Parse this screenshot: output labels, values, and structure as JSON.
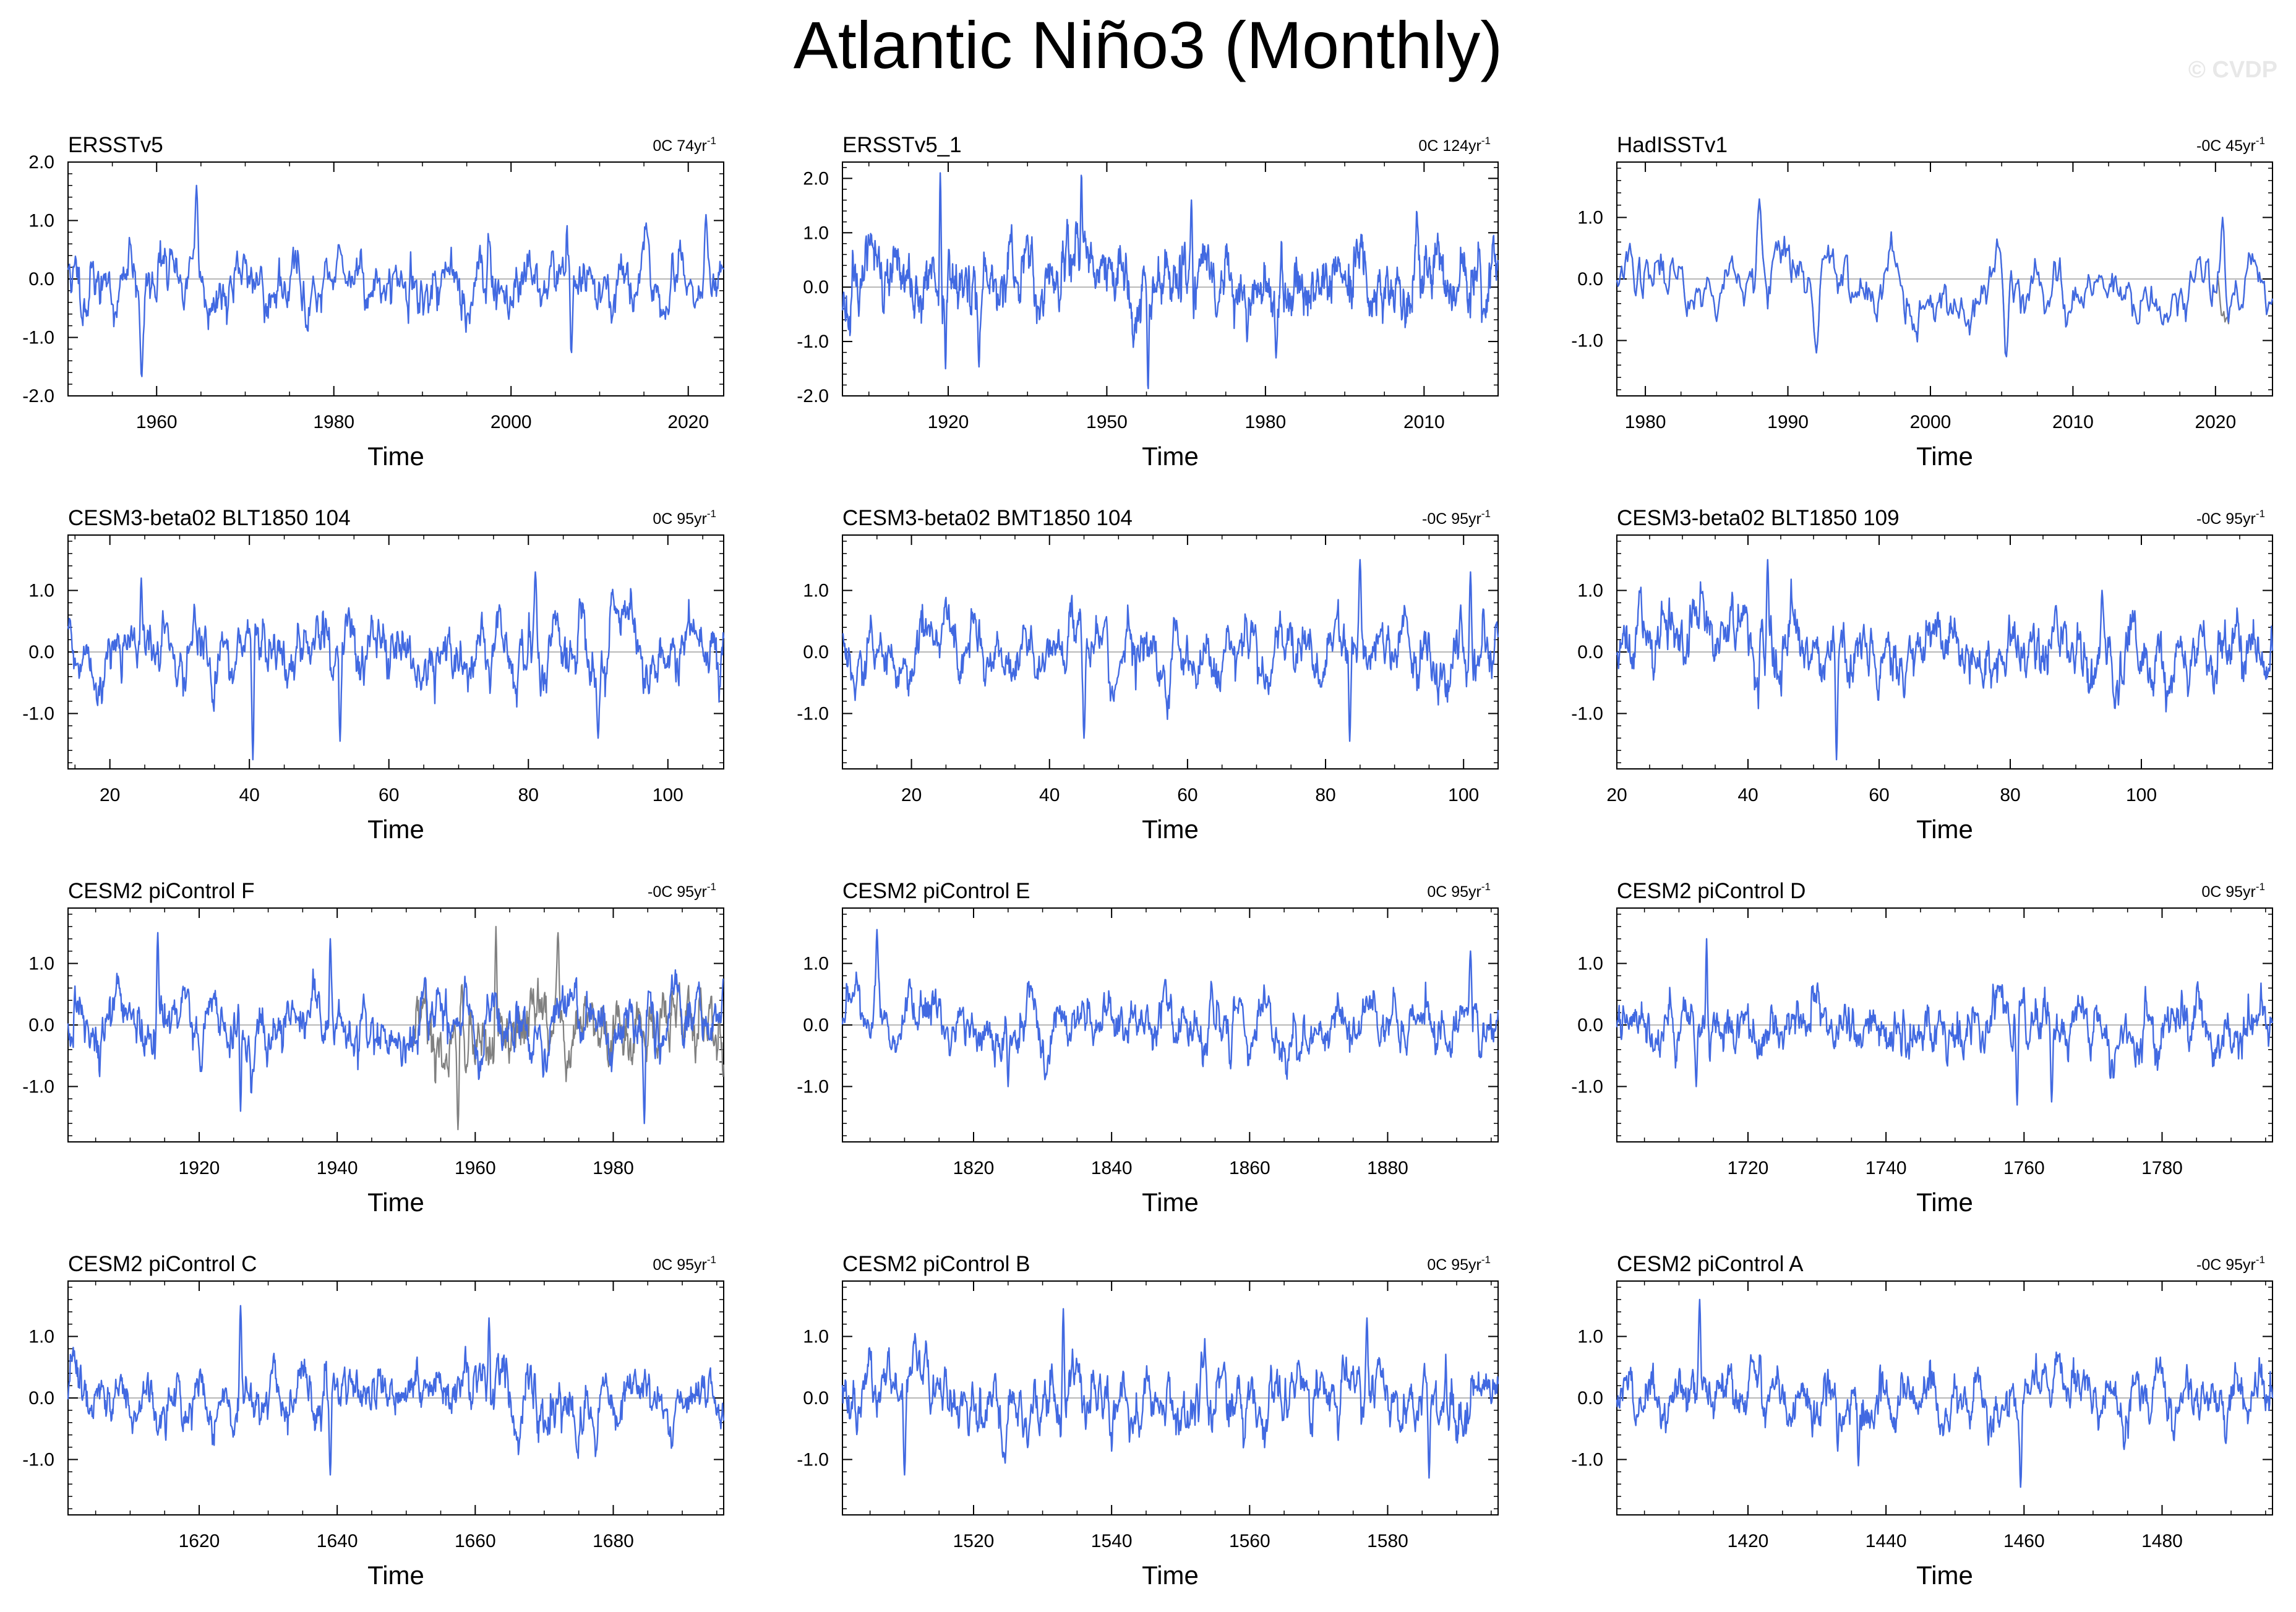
{
  "page": {
    "title": "Atlantic Niño3 (Monthly)",
    "watermark": "© CVDP"
  },
  "colors": {
    "primary_line": "#4169e1",
    "secondary_line": "#808080",
    "zero_line": "#a0a0a0",
    "frame": "#000000"
  },
  "chart_data": [
    {
      "type": "line",
      "panel": "ERSSTv5",
      "trend_text": "0C 74yr",
      "trend_unit_exp": "-1",
      "xlabel": "Time",
      "xlim": [
        1950,
        2024
      ],
      "ylim": [
        -2.0,
        2.0
      ],
      "xticks": [
        1960,
        1980,
        2000,
        2020
      ],
      "yticks": [
        2.0,
        1.0,
        0.0,
        -1.0,
        -2.0
      ],
      "ytick_labels": [
        "2.0",
        "1.0",
        "0.0",
        "-1.0",
        "-2.0"
      ],
      "series": [
        {
          "style": "primary",
          "seed": 11,
          "amp": 0.55,
          "peaks": [
            [
              1964.5,
              1.6
            ],
            [
              1958.3,
              -1.7
            ],
            [
              2006.8,
              -1.3
            ],
            [
              2022,
              1.1
            ]
          ]
        }
      ]
    },
    {
      "type": "line",
      "panel": "ERSSTv5_1",
      "trend_text": "0C 124yr",
      "trend_unit_exp": "-1",
      "xlabel": "Time",
      "xlim": [
        1900,
        2024
      ],
      "ylim": [
        -2.0,
        2.3
      ],
      "xticks": [
        1920,
        1950,
        1980,
        2010
      ],
      "yticks": [
        2.0,
        1.0,
        0.0,
        -1.0,
        -2.0
      ],
      "ytick_labels": [
        "2.0",
        "1.0",
        "0.0",
        "-1.0",
        "-2.0"
      ],
      "series": [
        {
          "style": "primary",
          "seed": 23,
          "amp": 0.6,
          "peaks": [
            [
              1918.5,
              2.1
            ],
            [
              1945.2,
              2.1
            ],
            [
              1919.5,
              -1.5
            ],
            [
              1957.8,
              -1.9
            ],
            [
              1966,
              1.6
            ],
            [
              1982,
              -1.3
            ]
          ]
        }
      ]
    },
    {
      "type": "line",
      "panel": "HadISSTv1",
      "trend_text": "-0C 45yr",
      "trend_unit_exp": "-1",
      "xlabel": "Time",
      "xlim": [
        1978,
        2024
      ],
      "ylim": [
        -1.9,
        1.9
      ],
      "xticks": [
        1980,
        1990,
        2000,
        2010,
        2020
      ],
      "yticks": [
        1.0,
        0.0,
        -1.0
      ],
      "ytick_labels": [
        "1.0",
        "0.0",
        "-1.0"
      ],
      "series": [
        {
          "style": "secondary",
          "seed": 37,
          "amp": 0.5,
          "peaks": [
            [
              1988,
              1.25
            ],
            [
              2005.3,
              -1.3
            ],
            [
              1992,
              -1.2
            ]
          ]
        },
        {
          "style": "primary",
          "seed": 37,
          "amp": 0.5,
          "peaks": [
            [
              1988,
              1.3
            ],
            [
              2005.3,
              -1.3
            ],
            [
              1992,
              -1.2
            ],
            [
              2020.5,
              1.0
            ]
          ]
        }
      ]
    },
    {
      "type": "line",
      "panel": "CESM3-beta02 BLT1850 104",
      "trend_text": "0C 95yr",
      "trend_unit_exp": "-1",
      "xlabel": "Time",
      "xlim": [
        14,
        108
      ],
      "ylim": [
        -1.9,
        1.9
      ],
      "xticks": [
        20,
        40,
        60,
        80,
        100
      ],
      "yticks": [
        1.0,
        0.0,
        -1.0
      ],
      "ytick_labels": [
        "1.0",
        "0.0",
        "-1.0"
      ],
      "series": [
        {
          "style": "primary",
          "seed": 41,
          "amp": 0.5,
          "peaks": [
            [
              40.5,
              -1.75
            ],
            [
              53,
              -1.45
            ],
            [
              24.5,
              1.2
            ],
            [
              81,
              1.3
            ],
            [
              90,
              -1.4
            ]
          ]
        }
      ]
    },
    {
      "type": "line",
      "panel": "CESM3-beta02 BMT1850 104",
      "trend_text": "-0C 95yr",
      "trend_unit_exp": "-1",
      "xlabel": "Time",
      "xlim": [
        10,
        105
      ],
      "ylim": [
        -1.9,
        1.9
      ],
      "xticks": [
        20,
        40,
        60,
        80,
        100
      ],
      "yticks": [
        1.0,
        0.0,
        -1.0
      ],
      "ytick_labels": [
        "1.0",
        "0.0",
        "-1.0"
      ],
      "series": [
        {
          "style": "primary",
          "seed": 53,
          "amp": 0.5,
          "peaks": [
            [
              85,
              1.5
            ],
            [
              45,
              -1.4
            ],
            [
              83.5,
              -1.45
            ],
            [
              101,
              1.3
            ]
          ]
        }
      ]
    },
    {
      "type": "line",
      "panel": "CESM3-beta02 BLT1850 109",
      "trend_text": "-0C 95yr",
      "trend_unit_exp": "-1",
      "xlabel": "Time",
      "xlim": [
        20,
        120
      ],
      "ylim": [
        -1.9,
        1.9
      ],
      "xticks": [
        20,
        40,
        60,
        80,
        100
      ],
      "yticks": [
        1.0,
        0.0,
        -1.0
      ],
      "ytick_labels": [
        "1.0",
        "0.0",
        "-1.0"
      ],
      "series": [
        {
          "style": "primary",
          "seed": 67,
          "amp": 0.5,
          "peaks": [
            [
              43,
              1.5
            ],
            [
              53.5,
              -1.75
            ],
            [
              94,
              1.0
            ]
          ]
        }
      ]
    },
    {
      "type": "line",
      "panel": "CESM2 piControl F",
      "trend_text": "-0C 95yr",
      "trend_unit_exp": "-1",
      "xlabel": "Time",
      "xlim": [
        1901,
        1996
      ],
      "ylim": [
        -1.9,
        1.9
      ],
      "xticks": [
        1920,
        1940,
        1960,
        1980
      ],
      "yticks": [
        1.0,
        0.0,
        -1.0
      ],
      "ytick_labels": [
        "1.0",
        "0.0",
        "-1.0"
      ],
      "series": [
        {
          "style": "secondary",
          "seed": 79,
          "amp": 0.65,
          "start": 1951,
          "peaks": [
            [
              1963,
              1.6
            ],
            [
              1957.5,
              -1.7
            ],
            [
              1972,
              1.5
            ]
          ]
        },
        {
          "style": "primary",
          "seed": 83,
          "amp": 0.5,
          "peaks": [
            [
              1939,
              1.4
            ],
            [
              1914,
              1.5
            ],
            [
              1926,
              -1.4
            ],
            [
              1984.5,
              -1.6
            ]
          ]
        }
      ]
    },
    {
      "type": "line",
      "panel": "CESM2 piControl E",
      "trend_text": "0C 95yr",
      "trend_unit_exp": "-1",
      "xlabel": "Time",
      "xlim": [
        1801,
        1896
      ],
      "ylim": [
        -1.9,
        1.9
      ],
      "xticks": [
        1820,
        1840,
        1860,
        1880
      ],
      "yticks": [
        1.0,
        0.0,
        -1.0
      ],
      "ytick_labels": [
        "1.0",
        "0.0",
        "-1.0"
      ],
      "series": [
        {
          "style": "primary",
          "seed": 97,
          "amp": 0.45,
          "peaks": [
            [
              1806,
              1.55
            ],
            [
              1892,
              1.2
            ],
            [
              1825,
              -1.0
            ]
          ]
        }
      ]
    },
    {
      "type": "line",
      "panel": "CESM2 piControl D",
      "trend_text": "0C 95yr",
      "trend_unit_exp": "-1",
      "xlabel": "Time",
      "xlim": [
        1701,
        1796
      ],
      "ylim": [
        -1.9,
        1.9
      ],
      "xticks": [
        1720,
        1740,
        1760,
        1780
      ],
      "yticks": [
        1.0,
        0.0,
        -1.0
      ],
      "ytick_labels": [
        "1.0",
        "0.0",
        "-1.0"
      ],
      "series": [
        {
          "style": "primary",
          "seed": 101,
          "amp": 0.45,
          "peaks": [
            [
              1714,
              1.4
            ],
            [
              1759,
              -1.3
            ],
            [
              1764,
              -1.25
            ],
            [
              1712.5,
              -1.0
            ]
          ]
        }
      ]
    },
    {
      "type": "line",
      "panel": "CESM2 piControl C",
      "trend_text": "0C 95yr",
      "trend_unit_exp": "-1",
      "xlabel": "Time",
      "xlim": [
        1601,
        1696
      ],
      "ylim": [
        -1.9,
        1.9
      ],
      "xticks": [
        1620,
        1640,
        1660,
        1680
      ],
      "yticks": [
        1.0,
        0.0,
        -1.0
      ],
      "ytick_labels": [
        "1.0",
        "0.0",
        "-1.0"
      ],
      "series": [
        {
          "style": "primary",
          "seed": 113,
          "amp": 0.45,
          "peaks": [
            [
              1626,
              1.5
            ],
            [
              1639,
              -1.25
            ],
            [
              1662,
              1.3
            ]
          ]
        }
      ]
    },
    {
      "type": "line",
      "panel": "CESM2 piControl B",
      "trend_text": "0C 95yr",
      "trend_unit_exp": "-1",
      "xlabel": "Time",
      "xlim": [
        1501,
        1596
      ],
      "ylim": [
        -1.9,
        1.9
      ],
      "xticks": [
        1520,
        1540,
        1560,
        1580
      ],
      "yticks": [
        1.0,
        0.0,
        -1.0
      ],
      "ytick_labels": [
        "1.0",
        "0.0",
        "-1.0"
      ],
      "series": [
        {
          "style": "primary",
          "seed": 127,
          "amp": 0.5,
          "peaks": [
            [
              1533,
              1.45
            ],
            [
              1577,
              1.3
            ],
            [
              1586,
              -1.3
            ],
            [
              1510,
              -1.25
            ]
          ]
        }
      ]
    },
    {
      "type": "line",
      "panel": "CESM2 piControl A",
      "trend_text": "-0C 95yr",
      "trend_unit_exp": "-1",
      "xlabel": "Time",
      "xlim": [
        1401,
        1496
      ],
      "ylim": [
        -1.9,
        1.9
      ],
      "xticks": [
        1420,
        1440,
        1460,
        1480
      ],
      "yticks": [
        1.0,
        0.0,
        -1.0
      ],
      "ytick_labels": [
        "1.0",
        "0.0",
        "-1.0"
      ],
      "series": [
        {
          "style": "primary",
          "seed": 131,
          "amp": 0.45,
          "peaks": [
            [
              1413,
              1.6
            ],
            [
              1459.5,
              -1.45
            ],
            [
              1436,
              -1.1
            ]
          ]
        }
      ]
    }
  ]
}
